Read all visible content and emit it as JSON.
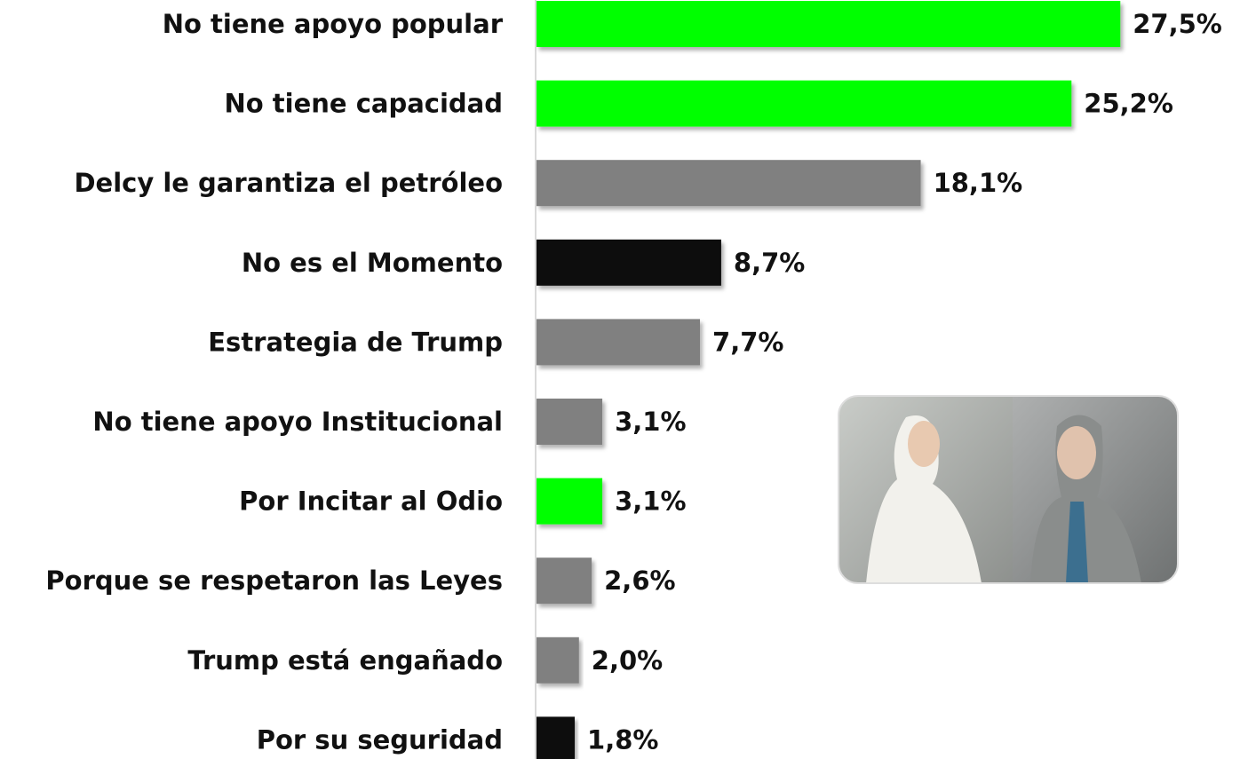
{
  "chart_data": {
    "type": "bar",
    "orientation": "horizontal",
    "categories": [
      "No tiene apoyo popular",
      "No tiene capacidad",
      "Delcy le garantiza el petróleo",
      "No es el Momento",
      "Estrategia de Trump",
      "No tiene apoyo Institucional",
      "Por Incitar al Odio",
      "Porque se respetaron las Leyes",
      "Trump está engañado",
      "Por su seguridad"
    ],
    "values": [
      27.5,
      25.2,
      18.1,
      8.7,
      7.7,
      3.1,
      3.1,
      2.6,
      2.0,
      1.8
    ],
    "value_labels": [
      "27,5%",
      "25,2%",
      "18,1%",
      "8,7%",
      "7,7%",
      "3,1%",
      "3,1%",
      "2,6%",
      "2,0%",
      "1,8%"
    ],
    "colors": [
      "#00ff00",
      "#00ff00",
      "#808080",
      "#111111",
      "#808080",
      "#808080",
      "#00ff00",
      "#808080",
      "#808080",
      "#111111"
    ]
  }
}
